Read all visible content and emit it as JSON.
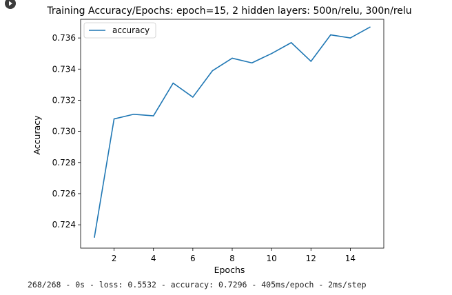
{
  "cell": {
    "run_icon": "play-circle-icon",
    "output_text": "268/268 - 0s - loss: 0.5532 - accuracy: 0.7296 - 405ms/epoch - 2ms/step"
  },
  "chart_data": {
    "type": "line",
    "title": "Training Accuracy/Epochs: epoch=15, 2 hidden layers: 500n/relu, 300n/relu",
    "xlabel": "Epochs",
    "ylabel": "Accuracy",
    "xlim": [
      0.3,
      15.7
    ],
    "ylim": [
      0.7225,
      0.7372
    ],
    "xticks": [
      2,
      4,
      6,
      8,
      10,
      12,
      14
    ],
    "yticks": [
      0.724,
      0.726,
      0.728,
      0.73,
      0.732,
      0.734,
      0.736
    ],
    "ytick_labels": [
      "0.724",
      "0.726",
      "0.728",
      "0.730",
      "0.732",
      "0.734",
      "0.736"
    ],
    "grid": false,
    "legend_position": "top-left",
    "series": [
      {
        "name": "accuracy",
        "color": "#1f77b4",
        "x": [
          1,
          2,
          3,
          4,
          5,
          6,
          7,
          8,
          9,
          10,
          11,
          12,
          13,
          14,
          15
        ],
        "values": [
          0.7232,
          0.7308,
          0.7311,
          0.731,
          0.7331,
          0.7322,
          0.7339,
          0.7347,
          0.7344,
          0.735,
          0.7357,
          0.7345,
          0.7362,
          0.736,
          0.7367
        ]
      }
    ]
  }
}
